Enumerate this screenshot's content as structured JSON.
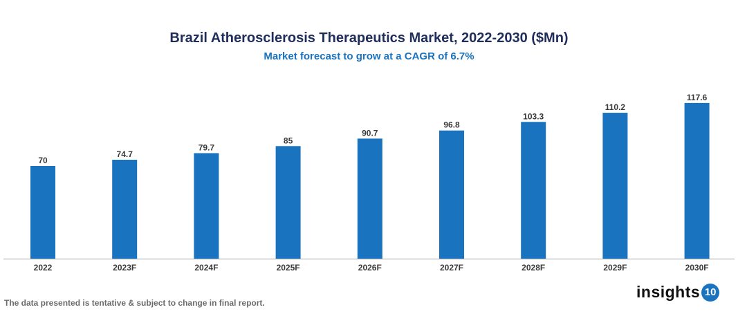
{
  "chart_data": {
    "type": "bar",
    "title": "Brazil Atherosclerosis Therapeutics Market, 2022-2030 ($Mn)",
    "subtitle": "Market forecast to grow at a CAGR of 6.7%",
    "categories": [
      "2022",
      "2023F",
      "2024F",
      "2025F",
      "2026F",
      "2027F",
      "2028F",
      "2029F",
      "2030F"
    ],
    "values": [
      70,
      74.7,
      79.7,
      85,
      90.7,
      96.8,
      103.3,
      110.2,
      117.6
    ],
    "value_labels": [
      "70",
      "74.7",
      "79.7",
      "85",
      "90.7",
      "96.8",
      "103.3",
      "110.2",
      "117.6"
    ],
    "xlabel": "",
    "ylabel": "",
    "ylim": [
      0,
      125
    ],
    "grid": false,
    "bar_color": "#1a73be"
  },
  "footer": "The data presented is tentative & subject to change in final report.",
  "logo": {
    "text": "insights",
    "badge": "10"
  }
}
